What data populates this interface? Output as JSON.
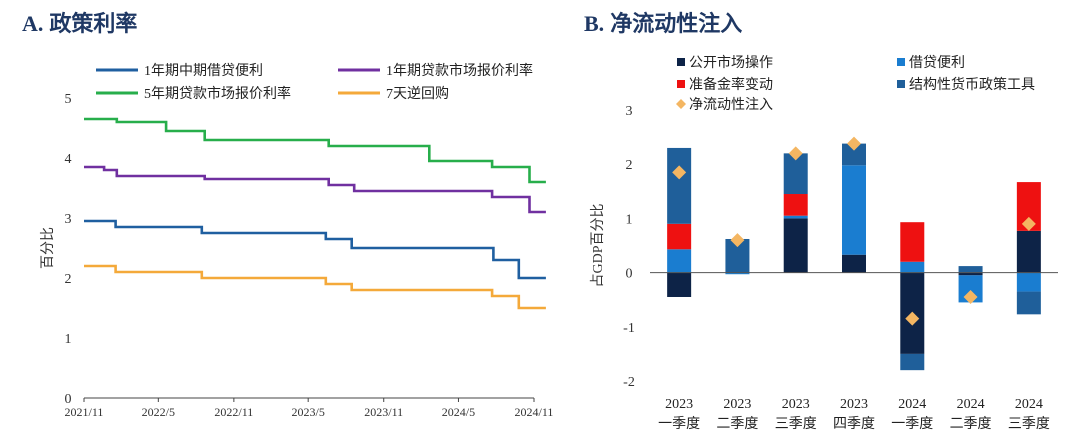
{
  "panel_a": {
    "letter": "A.",
    "title": "政策利率"
  },
  "panel_b": {
    "letter": "B.",
    "title": "净流动性注入"
  },
  "chart_data": [
    {
      "type": "line",
      "title": "政策利率",
      "ylabel": "百分比",
      "xlabel": "",
      "ylim": [
        0,
        5
      ],
      "yticks": [
        0,
        1,
        2,
        3,
        4,
        5
      ],
      "xlim": [
        "2021/11",
        "2024/11"
      ],
      "xticks": [
        "2021/11",
        "2022/5",
        "2022/11",
        "2023/5",
        "2023/11",
        "2024/5",
        "2024/11"
      ],
      "grid": false,
      "legend_position": "top",
      "series": [
        {
          "name": "1年期中期借贷便利",
          "color": "#1f5fa0",
          "points": [
            [
              "2021-11-01",
              2.95
            ],
            [
              "2021-12-15",
              2.95
            ],
            [
              "2022-01-17",
              2.85
            ],
            [
              "2022-08-15",
              2.75
            ],
            [
              "2023-06-13",
              2.65
            ],
            [
              "2023-08-15",
              2.5
            ],
            [
              "2024-07-25",
              2.3
            ],
            [
              "2024-09-25",
              2.0
            ],
            [
              "2024-11-30",
              2.0
            ]
          ]
        },
        {
          "name": "1年期贷款市场报价利率",
          "color": "#7030a0",
          "points": [
            [
              "2021-11-01",
              3.85
            ],
            [
              "2021-12-20",
              3.8
            ],
            [
              "2022-01-20",
              3.7
            ],
            [
              "2022-08-22",
              3.65
            ],
            [
              "2023-06-20",
              3.55
            ],
            [
              "2023-08-21",
              3.45
            ],
            [
              "2024-07-22",
              3.35
            ],
            [
              "2024-10-21",
              3.1
            ],
            [
              "2024-11-30",
              3.1
            ]
          ]
        },
        {
          "name": "5年期贷款市场报价利率",
          "color": "#27ae4b",
          "points": [
            [
              "2021-11-01",
              4.65
            ],
            [
              "2022-01-20",
              4.6
            ],
            [
              "2022-05-20",
              4.45
            ],
            [
              "2022-08-22",
              4.3
            ],
            [
              "2023-06-20",
              4.2
            ],
            [
              "2024-02-20",
              3.95
            ],
            [
              "2024-07-22",
              3.85
            ],
            [
              "2024-10-21",
              3.6
            ],
            [
              "2024-11-30",
              3.6
            ]
          ]
        },
        {
          "name": "7天逆回购",
          "color": "#f4a93a",
          "points": [
            [
              "2021-11-01",
              2.2
            ],
            [
              "2022-01-17",
              2.1
            ],
            [
              "2022-08-15",
              2.0
            ],
            [
              "2023-06-13",
              1.9
            ],
            [
              "2023-08-15",
              1.8
            ],
            [
              "2024-07-22",
              1.7
            ],
            [
              "2024-09-25",
              1.5
            ],
            [
              "2024-11-30",
              1.5
            ]
          ]
        }
      ]
    },
    {
      "type": "bar",
      "stacked": true,
      "title": "净流动性注入",
      "ylabel": "占GDP百分比",
      "ylim": [
        -2,
        3
      ],
      "yticks": [
        -2,
        -1,
        0,
        1,
        2,
        3
      ],
      "grid": false,
      "legend_position": "top",
      "categories": [
        [
          "2023",
          "一季度"
        ],
        [
          "2023",
          "二季度"
        ],
        [
          "2023",
          "三季度"
        ],
        [
          "2023",
          "四季度"
        ],
        [
          "2024",
          "一季度"
        ],
        [
          "2024",
          "二季度"
        ],
        [
          "2024",
          "三季度"
        ]
      ],
      "series": [
        {
          "name": "公开市场操作",
          "color": "#0d2347",
          "values": [
            -0.45,
            0.0,
            1.0,
            0.33,
            -1.5,
            -0.05,
            0.77
          ]
        },
        {
          "name": "借贷便利",
          "color": "#1a7dd0",
          "values": [
            0.43,
            -0.03,
            0.05,
            1.65,
            0.2,
            -0.5,
            -0.35
          ]
        },
        {
          "name": "准备金率变动",
          "color": "#ee1111",
          "values": [
            0.47,
            0.0,
            0.4,
            0.0,
            0.73,
            0.0,
            0.9
          ]
        },
        {
          "name": "结构性货币政策工具",
          "color": "#1f5f9a",
          "values": [
            1.4,
            0.62,
            0.75,
            0.4,
            -0.3,
            0.12,
            -0.42
          ]
        }
      ],
      "net": {
        "name": "净流动性注入",
        "color": "#f4b662",
        "values": [
          1.85,
          0.6,
          2.2,
          2.38,
          -0.85,
          -0.45,
          0.9
        ]
      }
    }
  ]
}
